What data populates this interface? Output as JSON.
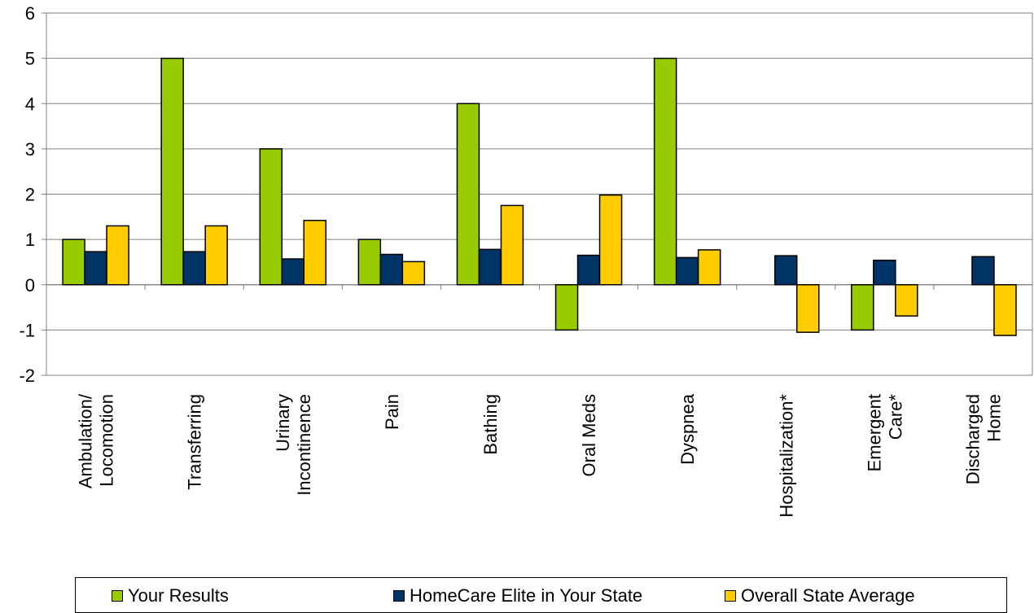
{
  "chart_data": {
    "type": "bar",
    "categories": [
      [
        "Ambulation/",
        "Locomotion"
      ],
      [
        "Transferring"
      ],
      [
        "Urinary",
        "Incontinence"
      ],
      [
        "Pain"
      ],
      [
        "Bathing"
      ],
      [
        "Oral Meds"
      ],
      [
        "Dyspnea"
      ],
      [
        "Hospitalization*"
      ],
      [
        "Emergent",
        "Care*"
      ],
      [
        "Discharged",
        "Home"
      ]
    ],
    "series": [
      {
        "name": "Your Results",
        "color": "#99cc00",
        "values": [
          1,
          5,
          3,
          1,
          4,
          -1,
          5,
          null,
          -1,
          null
        ]
      },
      {
        "name": "HomeCare Elite in Your State",
        "color": "#003366",
        "values": [
          0.73,
          0.73,
          0.57,
          0.67,
          0.78,
          0.65,
          0.6,
          0.64,
          0.54,
          0.62
        ]
      },
      {
        "name": "Overall State Average",
        "color": "#ffcc00",
        "values": [
          1.3,
          1.3,
          1.42,
          0.51,
          1.75,
          1.98,
          0.77,
          -1.05,
          -0.69,
          -1.12
        ]
      }
    ],
    "ylim": [
      -2,
      6
    ],
    "yticks": [
      -2,
      -1,
      0,
      1,
      2,
      3,
      4,
      5,
      6
    ],
    "grid": true,
    "legend": "bottom"
  }
}
